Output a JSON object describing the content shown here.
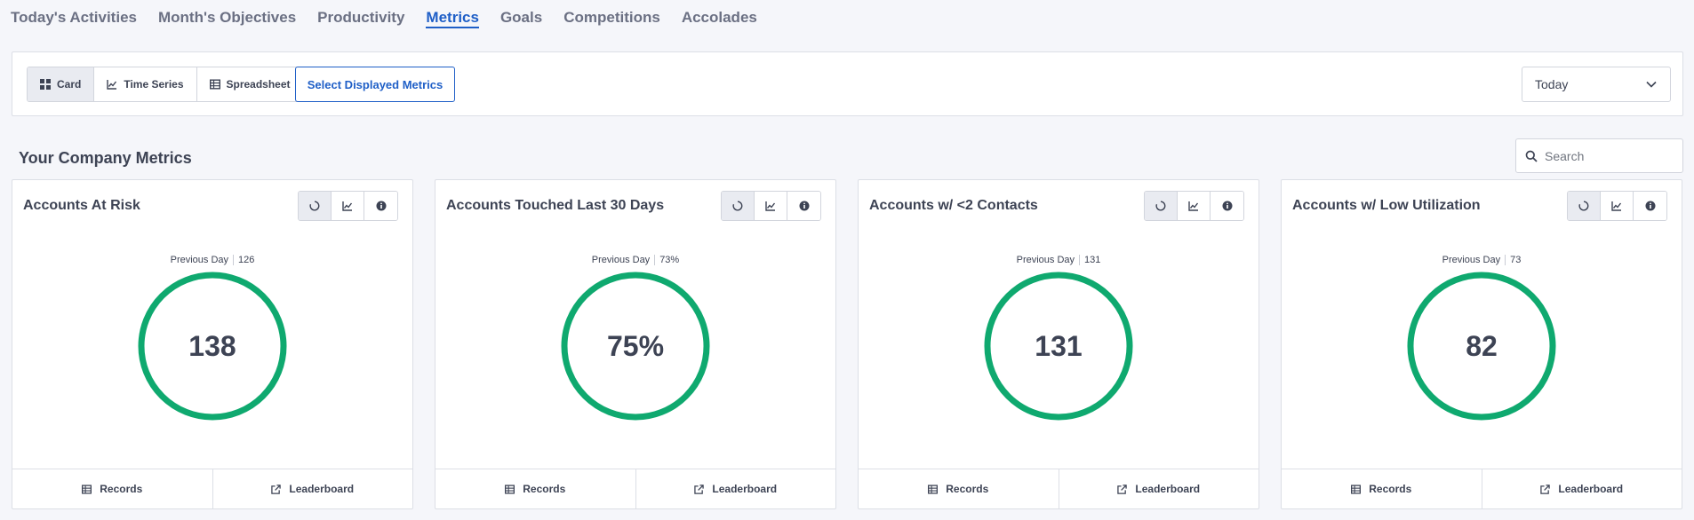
{
  "nav": {
    "tabs": [
      {
        "label": "Today's Activities"
      },
      {
        "label": "Month's Objectives"
      },
      {
        "label": "Productivity"
      },
      {
        "label": "Metrics"
      },
      {
        "label": "Goals"
      },
      {
        "label": "Competitions"
      },
      {
        "label": "Accolades"
      }
    ],
    "active": "Metrics"
  },
  "toolbar": {
    "views": [
      {
        "label": "Card",
        "icon": "grid-icon"
      },
      {
        "label": "Time Series",
        "icon": "line-chart-icon"
      },
      {
        "label": "Spreadsheet",
        "icon": "table-icon"
      }
    ],
    "active_view": "Card",
    "select_metrics_label": "Select Displayed Metrics",
    "range_value": "Today"
  },
  "section": {
    "title": "Your Company Metrics",
    "search_placeholder": "Search"
  },
  "cards": [
    {
      "title": "Accounts At Risk",
      "prev_label": "Previous Day",
      "prev_value": "126",
      "value": "138",
      "records_label": "Records",
      "leaderboard_label": "Leaderboard"
    },
    {
      "title": "Accounts Touched Last 30 Days",
      "prev_label": "Previous Day",
      "prev_value": "73%",
      "value": "75%",
      "records_label": "Records",
      "leaderboard_label": "Leaderboard"
    },
    {
      "title": "Accounts w/ <2 Contacts",
      "prev_label": "Previous Day",
      "prev_value": "131",
      "value": "131",
      "records_label": "Records",
      "leaderboard_label": "Leaderboard"
    },
    {
      "title": "Accounts w/ Low Utilization",
      "prev_label": "Previous Day",
      "prev_value": "73",
      "value": "82",
      "records_label": "Records",
      "leaderboard_label": "Leaderboard"
    }
  ],
  "colors": {
    "accent": "#1f5fc7",
    "ring": "#0fa96f",
    "text": "#3d4354"
  }
}
